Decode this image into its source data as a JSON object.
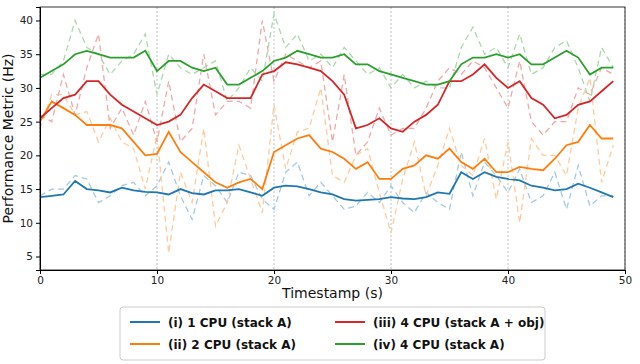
{
  "chart_data": {
    "type": "line",
    "x_label": "Timestamp (s)",
    "y_label": "Performance Metric (Hz)",
    "x": [
      0,
      1,
      2,
      3,
      4,
      5,
      6,
      7,
      8,
      9,
      10,
      11,
      12,
      13,
      14,
      15,
      16,
      17,
      18,
      19,
      20,
      21,
      22,
      23,
      24,
      25,
      26,
      27,
      28,
      29,
      30,
      31,
      32,
      33,
      34,
      35,
      36,
      37,
      38,
      39,
      40,
      41,
      42,
      43,
      44,
      45,
      46,
      47,
      48,
      49
    ],
    "xlim": [
      0,
      50
    ],
    "xticks": [
      0,
      10,
      20,
      30,
      40,
      50
    ],
    "ylim": [
      3,
      42
    ],
    "yticks": [
      5,
      10,
      15,
      20,
      25,
      30,
      35,
      40
    ],
    "grid": "x",
    "legend": "bottom",
    "series": [
      {
        "color": "#a5c9e1",
        "line_style": "dashed",
        "values": [
          14,
          15,
          15,
          17,
          16.5,
          13,
          14,
          15.5,
          16,
          14,
          15.5,
          19,
          14,
          10.5,
          17,
          15.5,
          13,
          17.5,
          17,
          13.5,
          12,
          17.5,
          19,
          14,
          16,
          14,
          12,
          12.5,
          14.5,
          13,
          15.5,
          13,
          11.5,
          14.5,
          13,
          12,
          20.5,
          14,
          19,
          17,
          14.5,
          18,
          13,
          14,
          17.5,
          12,
          18.5,
          12.5,
          14,
          14
        ]
      },
      {
        "color": "#ffcb9f",
        "line_style": "dashed",
        "values": [
          24,
          29,
          29,
          26,
          26.5,
          22,
          25.5,
          22,
          21,
          15,
          23,
          5.5,
          17.5,
          13,
          24,
          9.5,
          13,
          21.5,
          16.5,
          11.5,
          27.5,
          18,
          23.5,
          24,
          30,
          17,
          16,
          20,
          21,
          14.5,
          8.5,
          16.5,
          22,
          14,
          18.5,
          24,
          18.5,
          17,
          22.5,
          13.5,
          22,
          10,
          22.5,
          20,
          20,
          17,
          27,
          31.5,
          16,
          21.5
        ]
      },
      {
        "color": "#efa9a9",
        "line_style": "dashed",
        "values": [
          26,
          25,
          32,
          26,
          33,
          38,
          24,
          27,
          23,
          28,
          22,
          31,
          22,
          24,
          35,
          26,
          28,
          28,
          27,
          40,
          31,
          35,
          34,
          33,
          34,
          22,
          32,
          20,
          22,
          27,
          23,
          24,
          24,
          27,
          31,
          33,
          32,
          34,
          33,
          30,
          27,
          34,
          25,
          23,
          25,
          25,
          30,
          29,
          33,
          32
        ]
      },
      {
        "color": "#abd9ab",
        "line_style": "dashed",
        "values": [
          32,
          32,
          34,
          40,
          36,
          35,
          32,
          34,
          35,
          38,
          29,
          35,
          33,
          32,
          33,
          34,
          28,
          30,
          33,
          31,
          41,
          36,
          38,
          34,
          35,
          33,
          36,
          34,
          32,
          33,
          30,
          32,
          30,
          31,
          30,
          30,
          36,
          39,
          35,
          36,
          33,
          38,
          32,
          33,
          36,
          37,
          33,
          28,
          36,
          33
        ]
      },
      {
        "name": "(i) 1 CPU (stack A)",
        "color": "#1f77b4",
        "line_style": "solid",
        "values": [
          13.8,
          14,
          14.2,
          16.2,
          15,
          14.8,
          14.5,
          15.2,
          14.8,
          14.6,
          14.5,
          14.2,
          15,
          14.4,
          14.2,
          14.8,
          14.8,
          15,
          14.5,
          14,
          15.2,
          15.5,
          15.4,
          15,
          14.5,
          14.2,
          13.5,
          13.3,
          13.4,
          13.5,
          13.8,
          13.6,
          13.5,
          13.8,
          14.5,
          14.3,
          17.5,
          16.5,
          17.5,
          16.8,
          16.5,
          16.3,
          15.5,
          15.2,
          14.8,
          15,
          15.8,
          15.2,
          14.5,
          13.8
        ]
      },
      {
        "name": "(ii) 2 CPU (stack A)",
        "color": "#ff7f0e",
        "line_style": "solid",
        "values": [
          25,
          28,
          27,
          26,
          24.5,
          24.5,
          24.5,
          24,
          22,
          20,
          20.2,
          23.5,
          20.5,
          19,
          17.5,
          16,
          15.2,
          16,
          16.5,
          15,
          20.5,
          21.5,
          22.5,
          23,
          21,
          20.5,
          19.5,
          18,
          19,
          16.5,
          16.5,
          18,
          18.5,
          20,
          19.5,
          21,
          19,
          18,
          19.5,
          17.5,
          17.5,
          18.3,
          18,
          17.8,
          19.5,
          21.5,
          22,
          24.5,
          22.5,
          22.5
        ]
      },
      {
        "name": "(iii) 4 CPU (stack A + obj)",
        "color": "#d62728",
        "line_style": "solid",
        "values": [
          25.5,
          27,
          28.5,
          29,
          31,
          31,
          29,
          27.5,
          26.5,
          25.5,
          24.5,
          25,
          26,
          28.5,
          30.5,
          29.5,
          28.5,
          28.5,
          28.5,
          32,
          32.5,
          33.8,
          33.5,
          33,
          32.5,
          31,
          29,
          24,
          24.5,
          25.5,
          24,
          23.5,
          25,
          26,
          27.5,
          31,
          31,
          32,
          33.5,
          31.5,
          30,
          31,
          28.5,
          27.5,
          25.5,
          26,
          27.5,
          28,
          29.5,
          31
        ]
      },
      {
        "name": "(iv) 4 CPU (stack A)",
        "color": "#2ca02c",
        "line_style": "solid",
        "values": [
          31.5,
          32.5,
          33.5,
          35,
          35.5,
          35,
          34.5,
          34.5,
          34.5,
          35.5,
          32.5,
          34,
          34,
          33,
          32.5,
          33,
          30.5,
          30.5,
          31.5,
          32.5,
          34,
          34.5,
          35.5,
          35,
          34.5,
          34.5,
          35,
          33.5,
          33.5,
          32.5,
          32,
          31.5,
          31,
          30.5,
          30.5,
          31,
          33.5,
          34.5,
          34.5,
          35,
          34.5,
          35,
          33.5,
          33.5,
          34.5,
          35.5,
          34.5,
          32,
          33,
          33
        ]
      }
    ]
  }
}
